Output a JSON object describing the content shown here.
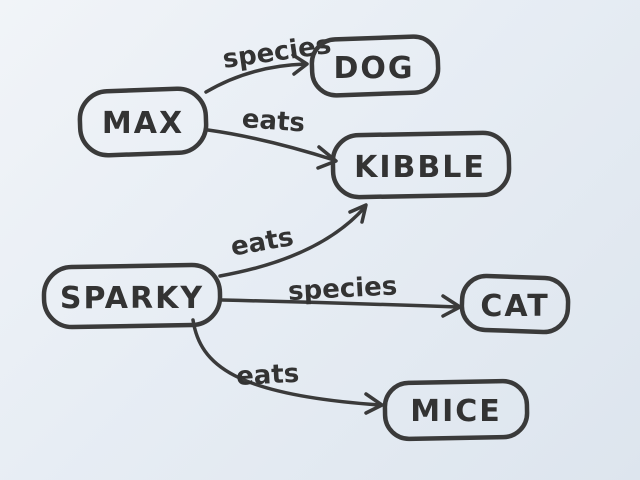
{
  "nodes": {
    "max": "MAX",
    "dog": "DOG",
    "kibble": "KIBBLE",
    "sparky": "SPARKY",
    "cat": "CAT",
    "mice": "MICE"
  },
  "edges": {
    "max_dog": "species",
    "max_kibble": "eats",
    "sparky_kibble": "eats",
    "sparky_cat": "species",
    "sparky_mice": "eats"
  },
  "colors": {
    "ink": "#3a3a3a",
    "paper": "#e7edf4"
  }
}
